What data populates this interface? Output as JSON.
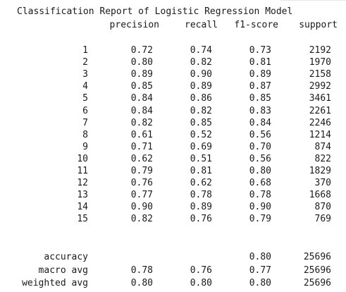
{
  "title": "Classification Report of Logistic Regression Model",
  "headers": {
    "precision": "precision",
    "recall": "recall",
    "f1": "f1-score",
    "support": "support"
  },
  "classes": [
    {
      "label": "1",
      "precision": "0.72",
      "recall": "0.74",
      "f1": "0.73",
      "support": "2192"
    },
    {
      "label": "2",
      "precision": "0.80",
      "recall": "0.82",
      "f1": "0.81",
      "support": "1970"
    },
    {
      "label": "3",
      "precision": "0.89",
      "recall": "0.90",
      "f1": "0.89",
      "support": "2158"
    },
    {
      "label": "4",
      "precision": "0.85",
      "recall": "0.89",
      "f1": "0.87",
      "support": "2992"
    },
    {
      "label": "5",
      "precision": "0.84",
      "recall": "0.86",
      "f1": "0.85",
      "support": "3461"
    },
    {
      "label": "6",
      "precision": "0.84",
      "recall": "0.82",
      "f1": "0.83",
      "support": "2261"
    },
    {
      "label": "7",
      "precision": "0.82",
      "recall": "0.85",
      "f1": "0.84",
      "support": "2246"
    },
    {
      "label": "8",
      "precision": "0.61",
      "recall": "0.52",
      "f1": "0.56",
      "support": "1214"
    },
    {
      "label": "9",
      "precision": "0.71",
      "recall": "0.69",
      "f1": "0.70",
      "support": "874"
    },
    {
      "label": "10",
      "precision": "0.62",
      "recall": "0.51",
      "f1": "0.56",
      "support": "822"
    },
    {
      "label": "11",
      "precision": "0.79",
      "recall": "0.81",
      "f1": "0.80",
      "support": "1829"
    },
    {
      "label": "12",
      "precision": "0.76",
      "recall": "0.62",
      "f1": "0.68",
      "support": "370"
    },
    {
      "label": "13",
      "precision": "0.77",
      "recall": "0.78",
      "f1": "0.78",
      "support": "1668"
    },
    {
      "label": "14",
      "precision": "0.90",
      "recall": "0.89",
      "f1": "0.90",
      "support": "870"
    },
    {
      "label": "15",
      "precision": "0.82",
      "recall": "0.76",
      "f1": "0.79",
      "support": "769"
    }
  ],
  "summary": [
    {
      "label": "accuracy",
      "precision": "",
      "recall": "",
      "f1": "0.80",
      "support": "25696"
    },
    {
      "label": "macro avg",
      "precision": "0.78",
      "recall": "0.76",
      "f1": "0.77",
      "support": "25696"
    },
    {
      "label": "weighted avg",
      "precision": "0.80",
      "recall": "0.80",
      "f1": "0.80",
      "support": "25696"
    }
  ]
}
